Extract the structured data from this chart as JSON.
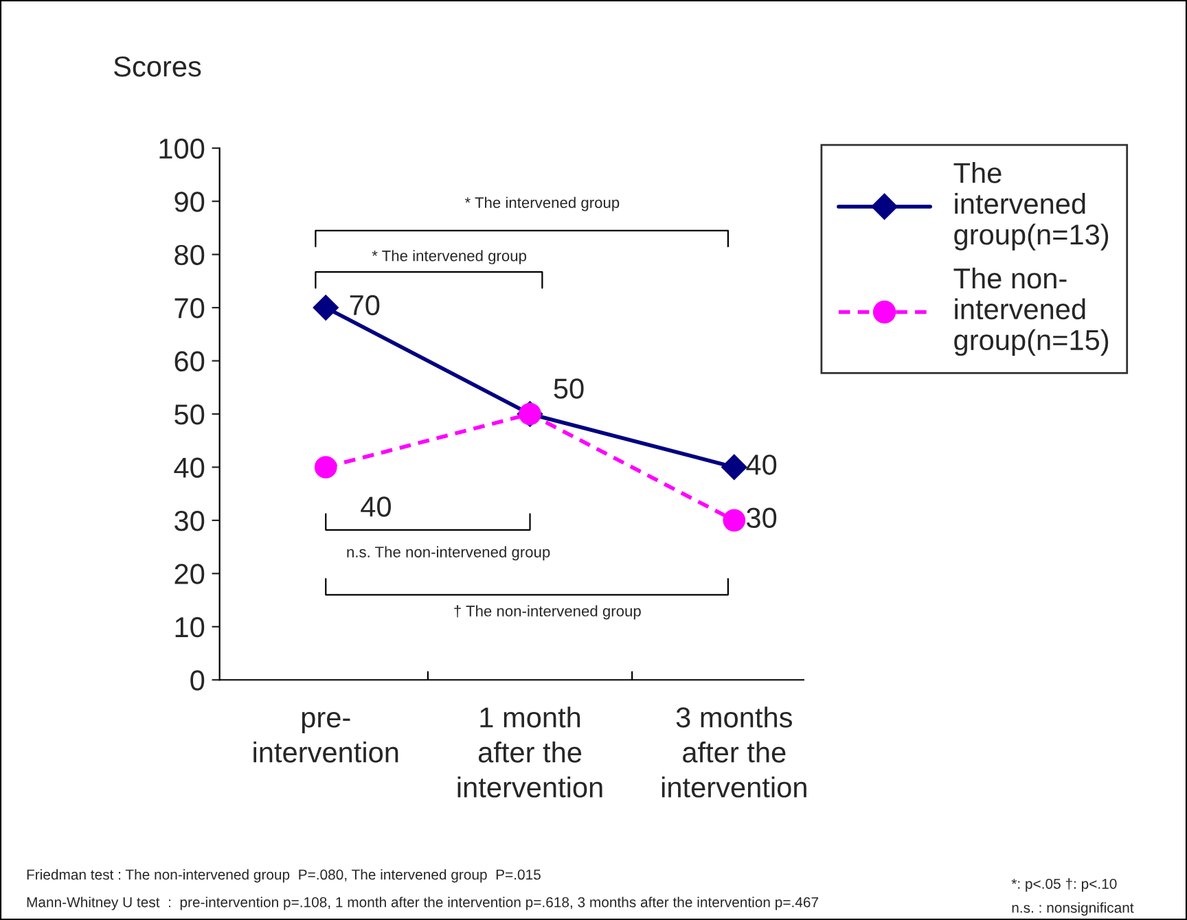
{
  "chart_data": {
    "type": "line",
    "ylabel": "Scores",
    "categories": [
      "pre-\nintervention",
      "1 month\nafter the\nintervention",
      "3 months\nafter the\nintervention"
    ],
    "series": [
      {
        "name": "The\nintervened\ngroup(n=13)",
        "color": "#000080",
        "values": [
          70,
          50,
          40
        ],
        "marker": "diamond",
        "line_style": "solid",
        "value_labels": [
          "70",
          "50",
          "40"
        ]
      },
      {
        "name": "The non-\nintervened\ngroup(n=15)",
        "color": "#ff00ff",
        "values": [
          40,
          50,
          30
        ],
        "marker": "circle",
        "line_style": "dashed",
        "value_labels": [
          "40",
          null,
          "30"
        ]
      }
    ],
    "ylim": [
      0,
      100
    ],
    "yticks": [
      0,
      10,
      20,
      30,
      40,
      50,
      60,
      70,
      80,
      90,
      100
    ],
    "grid": false,
    "legend": "right",
    "annotations": [
      "* The intervened group",
      "* The intervened group",
      "n.s. The non-intervened group",
      "† The non-intervened group",
      "Friedman test : The non-intervened group  P=.080, The intervened group  P=.015",
      "Mann-Whitney U test  :  pre-intervention p=.108, 1 month after the intervention p=.618, 3 months after the intervention p=.467",
      "*: p<.05 †: p<.10",
      "n.s. : nonsignificant"
    ]
  }
}
